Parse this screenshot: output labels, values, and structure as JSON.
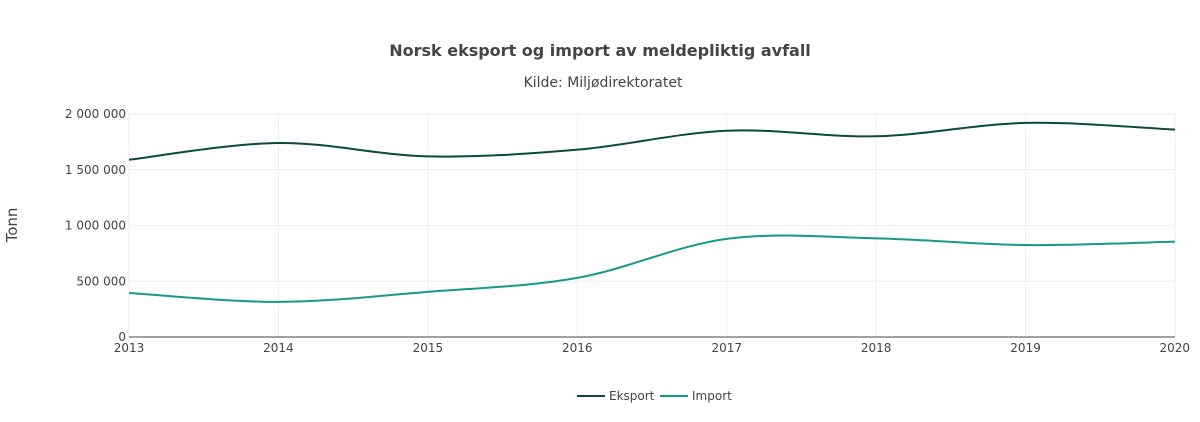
{
  "chart_data": {
    "type": "line",
    "title": "Norsk eksport og import av meldepliktig avfall",
    "subtitle": "Kilde: Miljødirektoratet",
    "xlabel": "",
    "ylabel": "Tonn",
    "x": [
      2013,
      2014,
      2015,
      2016,
      2017,
      2018,
      2019,
      2020
    ],
    "x_tick_labels": [
      "2013",
      "2014",
      "2015",
      "2016",
      "2017",
      "2018",
      "2019",
      "2020"
    ],
    "ylim": [
      0,
      2000000
    ],
    "y_ticks": [
      0,
      500000,
      1000000,
      1500000,
      2000000
    ],
    "y_tick_labels": [
      "0",
      "500 000",
      "1 000 000",
      "1 500 000",
      "2 000 000"
    ],
    "grid": true,
    "legend_position": "bottom-center",
    "series": [
      {
        "name": "Eksport",
        "color": "#0b4a40",
        "values": [
          1590000,
          1740000,
          1620000,
          1680000,
          1850000,
          1800000,
          1920000,
          1860000
        ]
      },
      {
        "name": "Import",
        "color": "#14998c",
        "values": [
          395000,
          315000,
          405000,
          530000,
          880000,
          885000,
          825000,
          855000
        ]
      }
    ]
  }
}
